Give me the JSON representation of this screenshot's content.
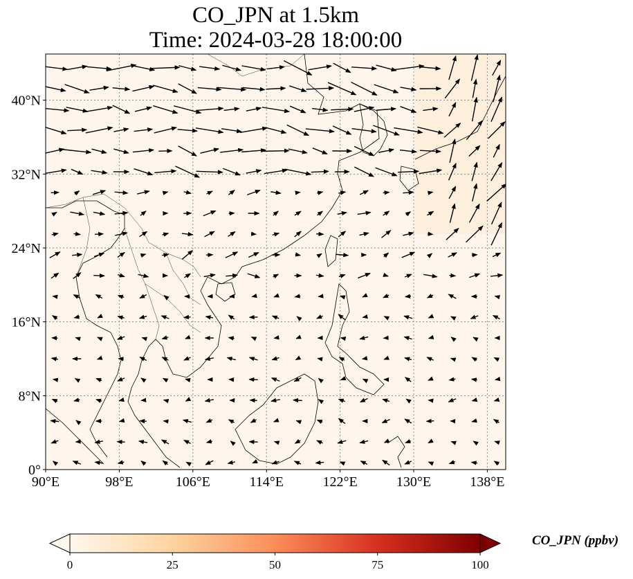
{
  "title": {
    "line1": "CO_JPN at 1.5km",
    "line2": "Time: 2024-03-28 18:00:00"
  },
  "map": {
    "extent": {
      "lon": [
        90,
        140
      ],
      "lat": [
        0,
        45
      ]
    },
    "background_color": "#fef6ec",
    "gridlines": "dotted",
    "lon_ticks": [
      {
        "value": 90,
        "label": "90°E"
      },
      {
        "value": 98,
        "label": "98°E"
      },
      {
        "value": 106,
        "label": "106°E"
      },
      {
        "value": 114,
        "label": "114°E"
      },
      {
        "value": 122,
        "label": "122°E"
      },
      {
        "value": 130,
        "label": "130°E"
      },
      {
        "value": 138,
        "label": "138°E"
      }
    ],
    "lat_ticks": [
      {
        "value": 0,
        "label": "0°"
      },
      {
        "value": 8,
        "label": "8°N"
      },
      {
        "value": 16,
        "label": "16°N"
      },
      {
        "value": 24,
        "label": "24°N"
      },
      {
        "value": 32,
        "label": "32°N"
      },
      {
        "value": 40,
        "label": "40°N"
      }
    ],
    "features": [
      "coastlines",
      "country-borders",
      "wind-vectors"
    ]
  },
  "colorbar": {
    "label": "CO_JPN (ppbv)",
    "colormap": "OrRd",
    "colors": [
      "#fff7ec",
      "#fdd49e",
      "#fc8d59",
      "#d7301f",
      "#7f0000"
    ],
    "ticks": [
      {
        "value": 0,
        "label": "0"
      },
      {
        "value": 25,
        "label": "25"
      },
      {
        "value": 50,
        "label": "50"
      },
      {
        "value": 75,
        "label": "75"
      },
      {
        "value": 100,
        "label": "100"
      }
    ],
    "range": [
      0,
      100
    ],
    "extend": "both"
  }
}
